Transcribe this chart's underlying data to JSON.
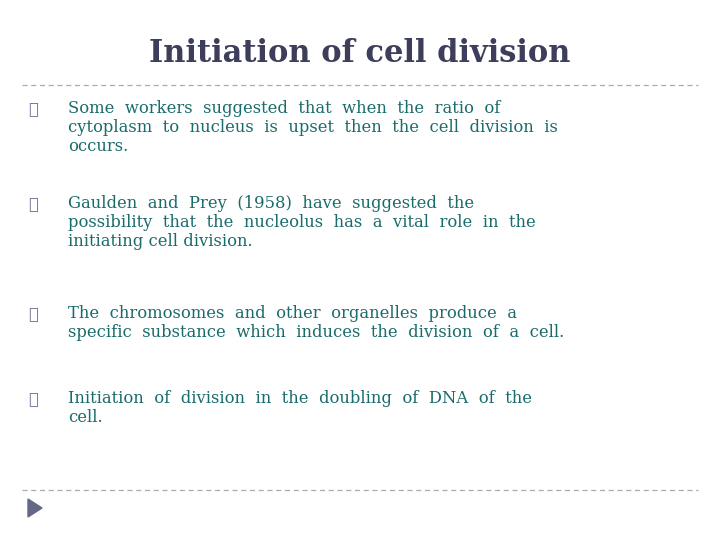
{
  "title": "Initiation of cell division",
  "title_color": "#3d3d5c",
  "title_fontsize": 22,
  "background_color": "#FFFFFF",
  "text_color": "#1a6b6b",
  "bullet_color": "#7b6b8d",
  "line_color": "#aaaaaa",
  "bullet_char": "❖",
  "bullets": [
    {
      "lines": [
        "Some  workers  suggested  that  when  the  ratio  of",
        "cytoplasm  to  nucleus  is  upset  then  the  cell  division  is",
        "occurs."
      ]
    },
    {
      "lines": [
        "Gaulden  and  Prey  (1958)  have  suggested  the",
        "possibility  that  the  nucleolus  has  a  vital  role  in  the",
        "initiating cell division."
      ]
    },
    {
      "lines": [
        "The  chromosomes  and  other  organelles  produce  a",
        "specific  substance  which  induces  the  division  of  a  cell."
      ]
    },
    {
      "lines": [
        "Initiation  of  division  in  the  doubling  of  DNA  of  the",
        "cell."
      ]
    }
  ],
  "arrow_color": "#666688",
  "figsize": [
    7.2,
    5.4
  ],
  "dpi": 100
}
